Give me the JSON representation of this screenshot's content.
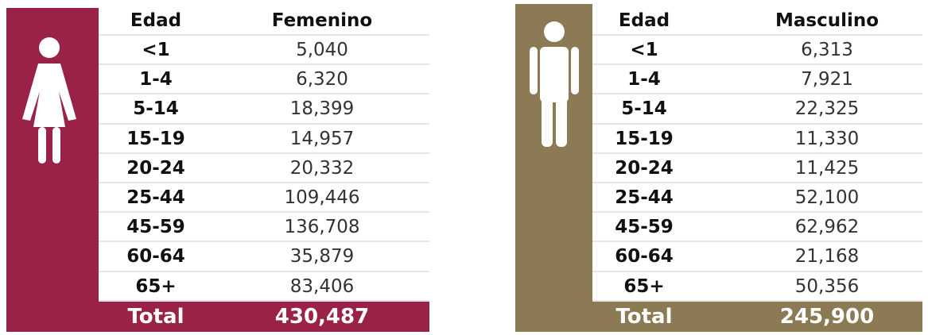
{
  "tables": [
    {
      "headers": [
        "Edad",
        "Femenino"
      ],
      "rows": [
        [
          "<1",
          "5,040"
        ],
        [
          "1-4",
          "6,320"
        ],
        [
          "5-14",
          "18,399"
        ],
        [
          "15-19",
          "14,957"
        ],
        [
          "20-24",
          "20,332"
        ],
        [
          "25-44",
          "109,446"
        ],
        [
          "45-59",
          "136,708"
        ],
        [
          "60-64",
          "35,879"
        ],
        [
          "65+",
          "83,406"
        ]
      ],
      "total": [
        "Total",
        "430,487"
      ]
    },
    {
      "headers": [
        "Edad",
        "Masculino"
      ],
      "rows": [
        [
          "<1",
          "6,313"
        ],
        [
          "1-4",
          "7,921"
        ],
        [
          "5-14",
          "22,325"
        ],
        [
          "15-19",
          "11,330"
        ],
        [
          "20-24",
          "11,425"
        ],
        [
          "25-44",
          "52,100"
        ],
        [
          "45-59",
          "62,962"
        ],
        [
          "60-64",
          "21,168"
        ],
        [
          "65+",
          "50,356"
        ]
      ],
      "total": [
        "Total",
        "245,900"
      ]
    }
  ]
}
